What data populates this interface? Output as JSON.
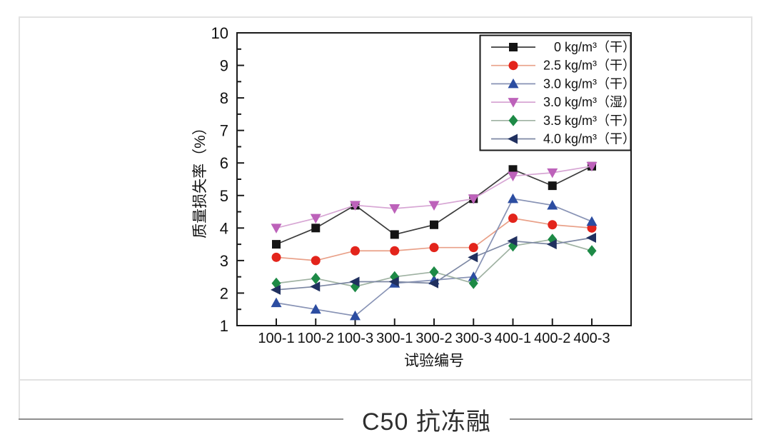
{
  "page": {
    "caption": "C50 抗冻融"
  },
  "chart_data": {
    "type": "line",
    "title": "",
    "xlabel": "试验编号",
    "ylabel": "质量损失率（%）",
    "ylim": [
      1,
      10
    ],
    "y_major_ticks": [
      1,
      2,
      3,
      4,
      5,
      6,
      7,
      8,
      9,
      10
    ],
    "y_minor_step": 0.5,
    "grid": false,
    "legend_position": "top-right-inside",
    "frame_color": "#1a1a1a",
    "categories": [
      "100-1",
      "100-2",
      "100-3",
      "300-1",
      "300-2",
      "300-3",
      "400-1",
      "400-2",
      "400-3"
    ],
    "series": [
      {
        "num": "0",
        "unit_label": "kg/m³（干）",
        "label": "0 kg/m³（干）",
        "marker": "square",
        "color": "#141414",
        "line_color": "#3c3c3c",
        "values": [
          3.5,
          4.0,
          4.7,
          3.8,
          4.1,
          4.9,
          5.8,
          5.3,
          5.9
        ]
      },
      {
        "num": "2.5",
        "unit_label": "kg/m³（干）",
        "label": "2.5 kg/m³（干）",
        "marker": "circle",
        "color": "#e3241b",
        "line_color": "#e9a088",
        "values": [
          3.1,
          3.0,
          3.3,
          3.3,
          3.4,
          3.4,
          4.3,
          4.1,
          4.0
        ]
      },
      {
        "num": "3.0",
        "unit_label": "kg/m³（干）",
        "label": "3.0 kg/m³（干）",
        "marker": "triangle-up",
        "color": "#2c4da1",
        "line_color": "#8893b5",
        "values": [
          1.7,
          1.5,
          1.3,
          2.3,
          2.4,
          2.5,
          4.9,
          4.7,
          4.2
        ]
      },
      {
        "num": "3.0",
        "unit_label": "kg/m³（湿）",
        "label": "3.0 kg/m³（湿）",
        "marker": "triangle-down",
        "color": "#bd62ba",
        "line_color": "#d7a6d4",
        "values": [
          4.0,
          4.3,
          4.7,
          4.6,
          4.7,
          4.9,
          5.6,
          5.7,
          5.9
        ]
      },
      {
        "num": "3.5",
        "unit_label": "kg/m³（干）",
        "label": "3.5 kg/m³（干）",
        "marker": "diamond",
        "color": "#1d8a46",
        "line_color": "#9fb2a2",
        "values": [
          2.3,
          2.45,
          2.2,
          2.5,
          2.65,
          2.3,
          3.45,
          3.65,
          3.3
        ]
      },
      {
        "num": "4.0",
        "unit_label": "kg/m³（干）",
        "label": "4.0 kg/m³（干）",
        "marker": "triangle-left",
        "color": "#20305f",
        "line_color": "#7d88a4",
        "values": [
          2.1,
          2.2,
          2.35,
          2.35,
          2.3,
          3.1,
          3.6,
          3.5,
          3.7
        ]
      }
    ]
  }
}
